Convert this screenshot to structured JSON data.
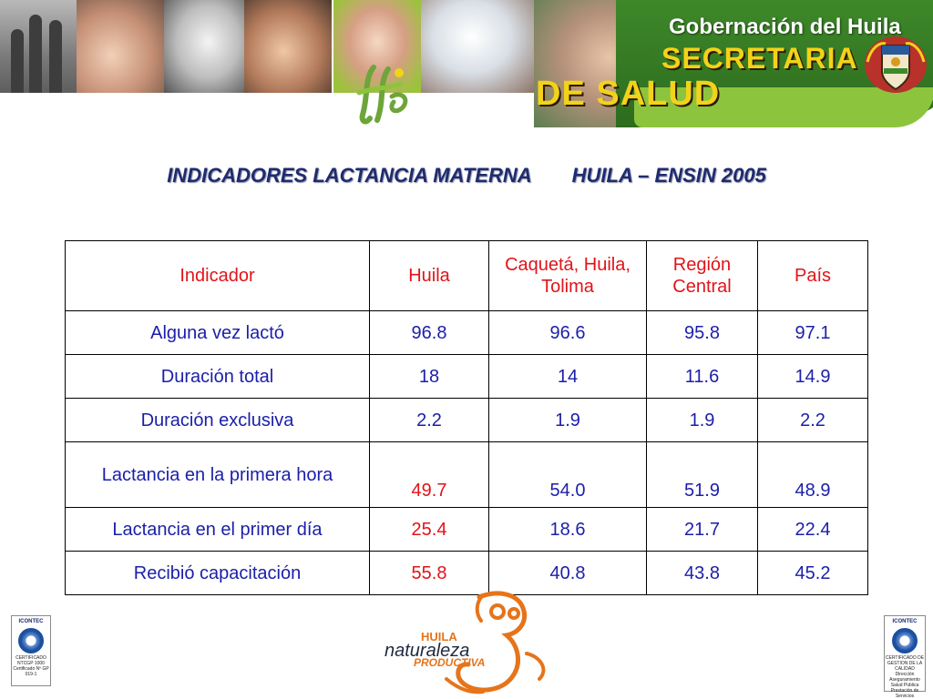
{
  "banner": {
    "government": "Gobernación del Huila",
    "secretaria": "SECRETARIA",
    "de_salud": "DE SALUD"
  },
  "slide": {
    "title_left": "INDICADORES LACTANCIA MATERNA",
    "title_right": "HUILA – ENSIN 2005"
  },
  "table": {
    "headers": [
      "Indicador",
      "Huila",
      "Caquetá, Huila, Tolima",
      "Región Central",
      "País"
    ],
    "rows": [
      {
        "indicator": "Alguna vez lactó",
        "values": [
          "96.8",
          "96.6",
          "95.8",
          "97.1"
        ],
        "huila_highlight": false
      },
      {
        "indicator": "Duración total",
        "values": [
          "18",
          "14",
          "11.6",
          "14.9"
        ],
        "huila_highlight": false
      },
      {
        "indicator": "Duración exclusiva",
        "values": [
          "2.2",
          "1.9",
          "1.9",
          "2.2"
        ],
        "huila_highlight": false
      },
      {
        "indicator": "Lactancia en la primera hora",
        "values": [
          "49.7",
          "54.0",
          "51.9",
          "48.9"
        ],
        "huila_highlight": true
      },
      {
        "indicator": "Lactancia en el primer día",
        "values": [
          "25.4",
          "18.6",
          "21.7",
          "22.4"
        ],
        "huila_highlight": true
      },
      {
        "indicator": "Recibió capacitación",
        "values": [
          "55.8",
          "40.8",
          "43.8",
          "45.2"
        ],
        "huila_highlight": true
      }
    ]
  },
  "colors": {
    "title": "#1f2b6f",
    "header_text": "#e0141a",
    "cell_text": "#1b1fa8",
    "highlight": "#e0141a"
  },
  "footer": {
    "cert_left": {
      "brand": "ICONTEC",
      "label": "CERTIFICADO",
      "standard": "NTCGP 1000",
      "caption": "Certificado Nº GP 019-1"
    },
    "cert_right": {
      "brand": "ICONTEC",
      "label": "CERTIFICADO DE GESTION DE LA CALIDAD",
      "caption": "Dirección Aseguramiento Salud Pública Prestación de Servicios"
    },
    "logo": {
      "line1": "HUILA",
      "line2": "naturaleza",
      "line3": "PRODUCTIVA"
    }
  }
}
